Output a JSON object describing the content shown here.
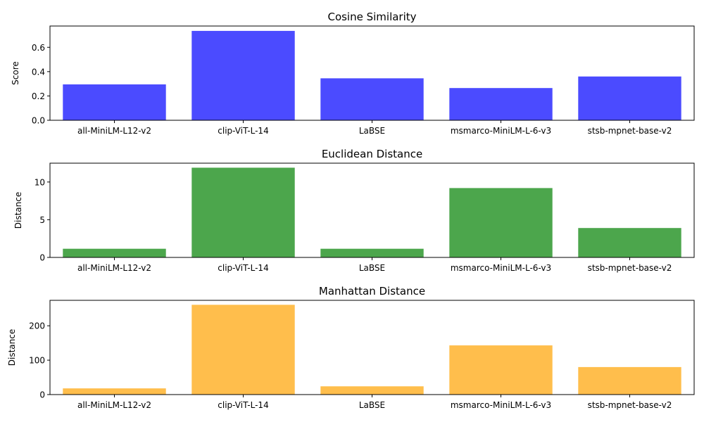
{
  "chart_data": [
    {
      "type": "bar",
      "title": "Cosine Similarity",
      "xlabel": "",
      "ylabel": "Score",
      "categories": [
        "all-MiniLM-L12-v2",
        "clip-ViT-L-14",
        "LaBSE",
        "msmarco-MiniLM-L-6-v3",
        "stsb-mpnet-base-v2"
      ],
      "values": [
        0.295,
        0.735,
        0.345,
        0.265,
        0.36
      ],
      "ylim": [
        0,
        0.775
      ],
      "yticks": [
        0.0,
        0.2,
        0.4,
        0.6
      ],
      "ytick_labels": [
        "0.0",
        "0.2",
        "0.4",
        "0.6"
      ],
      "color": "#4b4bff"
    },
    {
      "type": "bar",
      "title": "Euclidean Distance",
      "xlabel": "",
      "ylabel": "Distance",
      "categories": [
        "all-MiniLM-L12-v2",
        "clip-ViT-L-14",
        "LaBSE",
        "msmarco-MiniLM-L-6-v3",
        "stsb-mpnet-base-v2"
      ],
      "values": [
        1.15,
        11.9,
        1.15,
        9.2,
        3.9
      ],
      "ylim": [
        0,
        12.5
      ],
      "yticks": [
        0,
        5,
        10
      ],
      "ytick_labels": [
        "0",
        "5",
        "10"
      ],
      "color": "#4ca64c"
    },
    {
      "type": "bar",
      "title": "Manhattan Distance",
      "xlabel": "",
      "ylabel": "Distance",
      "categories": [
        "all-MiniLM-L12-v2",
        "clip-ViT-L-14",
        "LaBSE",
        "msmarco-MiniLM-L-6-v3",
        "stsb-mpnet-base-v2"
      ],
      "values": [
        18,
        261,
        24,
        143,
        80
      ],
      "ylim": [
        0,
        274
      ],
      "yticks": [
        0,
        100,
        200
      ],
      "ytick_labels": [
        "0",
        "100",
        "200"
      ],
      "color": "#ffbe4c"
    }
  ]
}
